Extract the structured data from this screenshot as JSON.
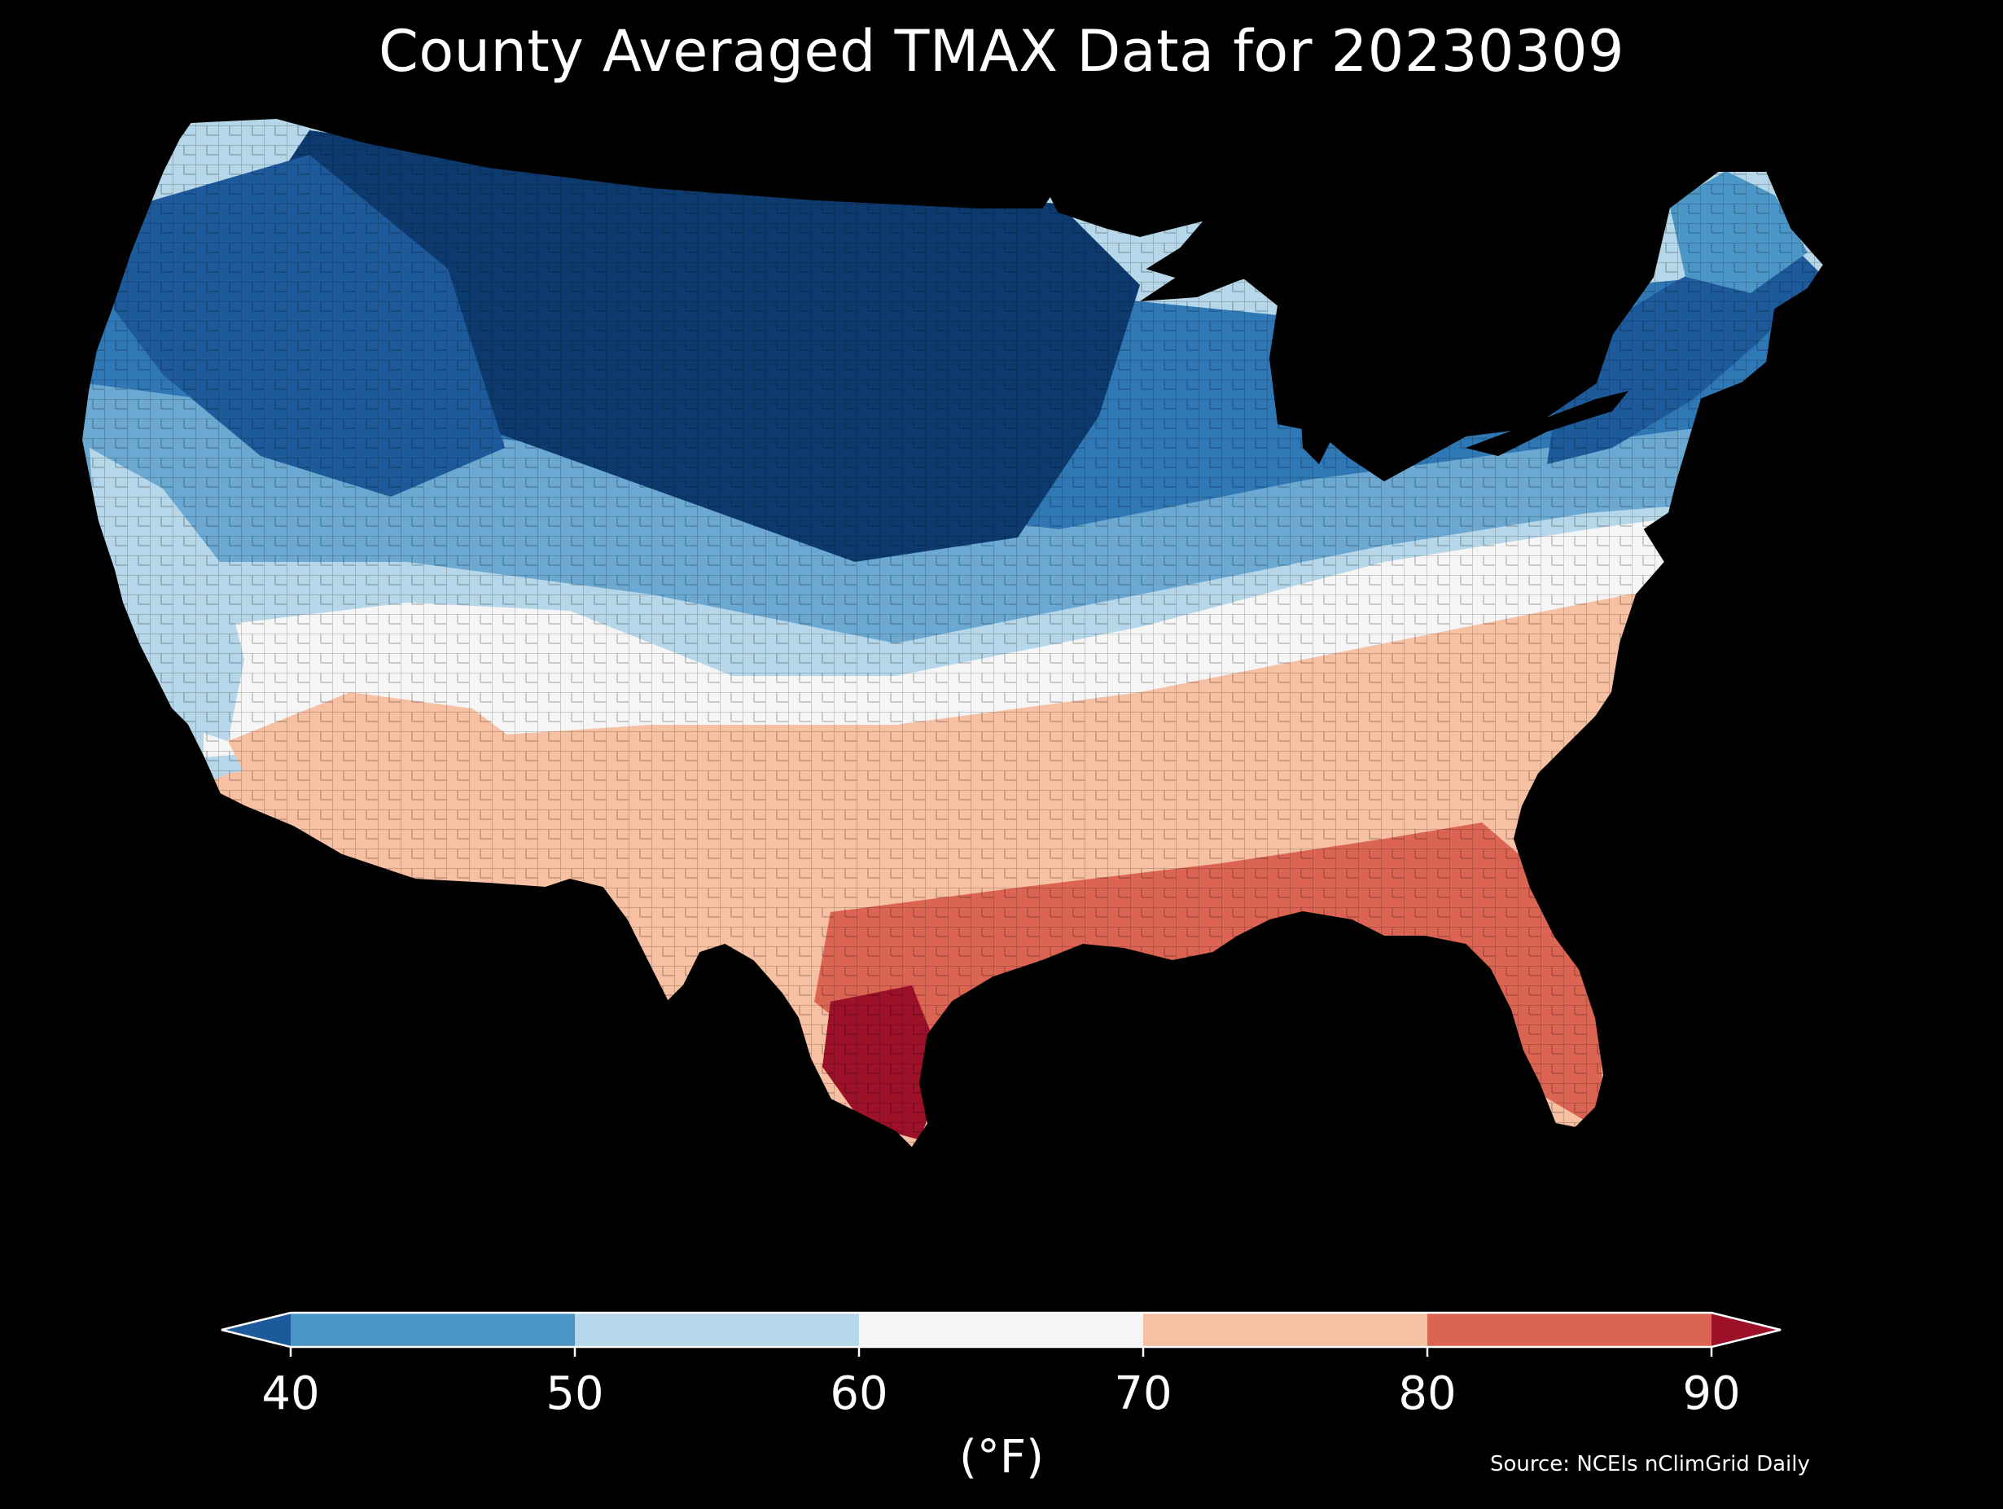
{
  "map": {
    "title": "County Averaged TMAX Data for 20230309",
    "source": "Source: NCEIs nClimGrid Daily",
    "region": "Contiguous United States",
    "legend": {
      "unit_label": "(°F)",
      "ticks": [
        "40",
        "50",
        "60",
        "70",
        "80",
        "90"
      ],
      "tick_values": [
        40,
        50,
        60,
        70,
        80,
        90
      ],
      "extend": "both",
      "bins": [
        {
          "range": "<40",
          "color": "#1d5a9b"
        },
        {
          "range": "40-50",
          "color": "#4a96c7"
        },
        {
          "range": "50-60",
          "color": "#b6d7ea"
        },
        {
          "range": "60-70",
          "color": "#f5f5f5"
        },
        {
          "range": "70-80",
          "color": "#f8c0a3"
        },
        {
          "range": "80-90",
          "color": "#db6453"
        },
        {
          "range": ">90",
          "color": "#9c1127"
        }
      ]
    },
    "regions": [
      {
        "area": "Northern Plains / Rockies",
        "bin": "<40",
        "color": "#0c3a6e"
      },
      {
        "area": "Pacific Northwest / Great Basin",
        "bin": "<40",
        "color": "#1d5a9b"
      },
      {
        "area": "Upper Midwest / Great Lakes",
        "bin": "40-50",
        "color": "#4a96c7"
      },
      {
        "area": "Northeast / New England",
        "bin": "<40",
        "color": "#1d5a9b"
      },
      {
        "area": "Central Plains / Ohio Valley",
        "bin": "50-60",
        "color": "#b6d7ea"
      },
      {
        "area": "Southwest / Mid-South / Carolinas",
        "bin": "60-70",
        "color": "#f5f5f5"
      },
      {
        "area": "Arizona / West Texas / Southeast",
        "bin": "70-80",
        "color": "#f8c0a3"
      },
      {
        "area": "Gulf Coast / Florida",
        "bin": "80-90",
        "color": "#db6453"
      },
      {
        "area": "South Texas",
        "bin": ">90",
        "color": "#9c1127"
      }
    ]
  }
}
